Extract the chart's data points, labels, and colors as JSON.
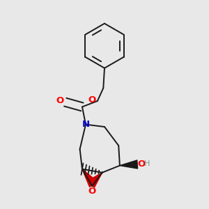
{
  "background_color": "#e8e8e8",
  "bond_color": "#1a1a1a",
  "bond_lw": 1.4,
  "atom_colors": {
    "O": "#ff0000",
    "N": "#0000cc",
    "H": "#6a9a9a",
    "C": "#1a1a1a"
  },
  "font_size": 9.5,
  "fig_size": [
    3.0,
    3.0
  ],
  "dpi": 100
}
